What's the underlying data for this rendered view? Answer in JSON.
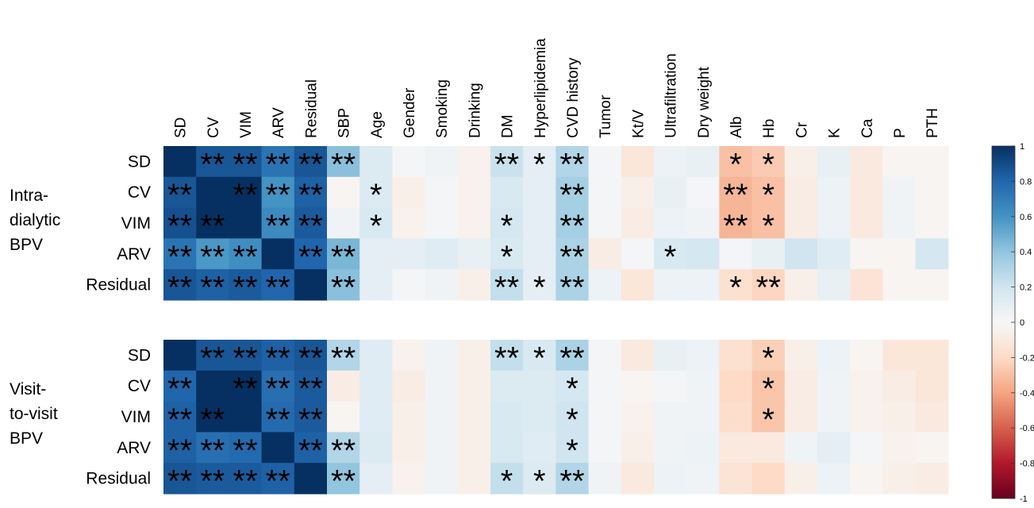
{
  "chart_data": {
    "type": "heatmap",
    "title": "",
    "columns": [
      "SD",
      "CV",
      "VIM",
      "ARV",
      "Residual",
      "SBP",
      "Age",
      "Gender",
      "Smoking",
      "Drinking",
      "DM",
      "Hyperlipidemia",
      "CVD history",
      "Tumor",
      "Kt/V",
      "Ultrafiltration",
      "Dry weight",
      "Alb",
      "Hb",
      "Cr",
      "K",
      "Ca",
      "P",
      "PTH"
    ],
    "colorbar": {
      "min": -1,
      "max": 1,
      "ticks": [
        "1",
        "0.8",
        "0.6",
        "0.4",
        "0.2",
        "0",
        "-0.2",
        "-0.4",
        "-0.6",
        "-0.8",
        "-1"
      ],
      "colors": [
        "#67001f",
        "#b2182b",
        "#d6604d",
        "#f4a582",
        "#fddbc7",
        "#f7f7f7",
        "#d1e5f0",
        "#92c5de",
        "#4393c3",
        "#2166ac",
        "#053061"
      ]
    },
    "groups": [
      {
        "label": "Intra-dialytic BPV",
        "label_lines": [
          "Intra-",
          "dialytic",
          "BPV"
        ],
        "rows": [
          {
            "name": "SD",
            "values": [
              1.0,
              0.86,
              0.86,
              0.74,
              0.86,
              0.42,
              0.14,
              0.02,
              0.04,
              -0.04,
              0.22,
              0.1,
              0.3,
              0.02,
              -0.12,
              0.06,
              0.08,
              -0.3,
              -0.26,
              -0.06,
              0.08,
              -0.1,
              -0.02,
              -0.02
            ],
            "stars": [
              "",
              "**",
              "**",
              "**",
              "**",
              "**",
              "",
              "",
              "",
              "",
              "**",
              "*",
              "**",
              "",
              "",
              "",
              "",
              "*",
              "*",
              "",
              "",
              "",
              "",
              ""
            ]
          },
          {
            "name": "CV",
            "values": [
              0.86,
              1.0,
              1.0,
              0.6,
              0.82,
              -0.02,
              0.14,
              -0.06,
              0.02,
              -0.04,
              0.16,
              0.1,
              0.34,
              0.02,
              -0.06,
              0.08,
              0.02,
              -0.34,
              -0.3,
              -0.08,
              0.06,
              -0.1,
              0.04,
              -0.02
            ],
            "stars": [
              "**",
              "",
              "**",
              "**",
              "**",
              "",
              "*",
              "",
              "",
              "",
              "",
              "",
              "**",
              "",
              "",
              "",
              "",
              "**",
              "*",
              "",
              "",
              "",
              "",
              ""
            ]
          },
          {
            "name": "VIM",
            "values": [
              0.88,
              1.0,
              1.0,
              0.64,
              0.84,
              0.04,
              0.16,
              -0.04,
              0.02,
              -0.04,
              0.18,
              0.1,
              0.34,
              0.02,
              -0.08,
              0.06,
              0.04,
              -0.34,
              -0.3,
              -0.08,
              0.06,
              -0.1,
              0.04,
              -0.02
            ],
            "stars": [
              "**",
              "**",
              "",
              "**",
              "**",
              "",
              "*",
              "",
              "",
              "",
              "*",
              "",
              "**",
              "",
              "",
              "",
              "",
              "**",
              "*",
              "",
              "",
              "",
              "",
              ""
            ]
          },
          {
            "name": "ARV",
            "values": [
              0.74,
              0.58,
              0.62,
              1.0,
              0.8,
              0.46,
              0.1,
              0.1,
              0.12,
              0.08,
              0.16,
              0.1,
              0.32,
              -0.08,
              0.02,
              0.16,
              0.18,
              0.02,
              0.08,
              0.2,
              0.12,
              -0.02,
              -0.02,
              0.18
            ],
            "stars": [
              "**",
              "**",
              "**",
              "",
              "**",
              "**",
              "",
              "",
              "",
              "",
              "*",
              "",
              "**",
              "",
              "",
              "*",
              "",
              "",
              "",
              "",
              "",
              "",
              "",
              ""
            ]
          },
          {
            "name": "Residual",
            "values": [
              0.86,
              0.82,
              0.84,
              0.8,
              1.0,
              0.42,
              0.1,
              0.02,
              0.04,
              -0.06,
              0.24,
              0.1,
              0.32,
              0.06,
              -0.12,
              0.06,
              0.06,
              -0.16,
              -0.22,
              -0.06,
              0.08,
              -0.14,
              -0.02,
              -0.02
            ],
            "stars": [
              "**",
              "**",
              "**",
              "**",
              "",
              "**",
              "",
              "",
              "",
              "",
              "**",
              "*",
              "**",
              "",
              "",
              "",
              "",
              "*",
              "**",
              "",
              "",
              "",
              "",
              ""
            ]
          }
        ]
      },
      {
        "label": "Visit-to-visit BPV",
        "label_lines": [
          "Visit-",
          "to-visit",
          "BPV"
        ],
        "rows": [
          {
            "name": "SD",
            "values": [
              1.0,
              0.86,
              0.86,
              0.82,
              0.86,
              0.3,
              0.12,
              -0.04,
              0.04,
              -0.06,
              0.24,
              0.16,
              0.32,
              0.02,
              -0.1,
              0.08,
              0.06,
              -0.16,
              -0.24,
              -0.06,
              0.06,
              -0.02,
              -0.12,
              -0.12
            ],
            "stars": [
              "",
              "**",
              "**",
              "**",
              "**",
              "**",
              "",
              "",
              "",
              "",
              "**",
              "*",
              "**",
              "",
              "",
              "",
              "",
              "",
              "*",
              "",
              "",
              "",
              "",
              ""
            ]
          },
          {
            "name": "CV",
            "values": [
              0.8,
              1.0,
              1.0,
              0.76,
              0.84,
              -0.08,
              0.12,
              -0.08,
              0.04,
              -0.06,
              0.14,
              0.14,
              0.18,
              0.02,
              -0.02,
              0.02,
              0.04,
              -0.2,
              -0.28,
              -0.08,
              0.04,
              -0.04,
              -0.08,
              -0.12
            ],
            "stars": [
              "**",
              "",
              "**",
              "**",
              "**",
              "",
              "",
              "",
              "",
              "",
              "",
              "",
              "*",
              "",
              "",
              "",
              "",
              "",
              "*",
              "",
              "",
              "",
              "",
              ""
            ]
          },
          {
            "name": "VIM",
            "values": [
              0.82,
              1.0,
              1.0,
              0.78,
              0.84,
              -0.02,
              0.12,
              -0.06,
              0.04,
              -0.06,
              0.16,
              0.14,
              0.2,
              0.02,
              -0.04,
              0.04,
              0.04,
              -0.18,
              -0.28,
              -0.08,
              0.04,
              -0.04,
              -0.06,
              -0.1
            ],
            "stars": [
              "**",
              "**",
              "",
              "**",
              "**",
              "",
              "",
              "",
              "",
              "",
              "",
              "",
              "*",
              "",
              "",
              "",
              "",
              "",
              "*",
              "",
              "",
              "",
              "",
              ""
            ]
          },
          {
            "name": "ARV",
            "values": [
              0.82,
              0.76,
              0.78,
              1.0,
              0.82,
              0.3,
              0.14,
              -0.06,
              0.04,
              -0.06,
              0.16,
              0.12,
              0.2,
              0.02,
              -0.06,
              0.04,
              0.06,
              -0.1,
              -0.1,
              0.04,
              0.1,
              0.02,
              -0.04,
              -0.02
            ],
            "stars": [
              "**",
              "**",
              "**",
              "",
              "**",
              "**",
              "",
              "",
              "",
              "",
              "",
              "",
              "*",
              "",
              "",
              "",
              "",
              "",
              "",
              "",
              "",
              "",
              "",
              ""
            ]
          },
          {
            "name": "Residual",
            "values": [
              0.86,
              0.84,
              0.84,
              0.82,
              1.0,
              0.4,
              0.1,
              -0.04,
              0.04,
              -0.06,
              0.24,
              0.14,
              0.3,
              0.04,
              -0.1,
              0.06,
              0.04,
              -0.14,
              -0.2,
              -0.06,
              0.06,
              -0.02,
              -0.06,
              -0.08
            ],
            "stars": [
              "**",
              "**",
              "**",
              "**",
              "",
              "**",
              "",
              "",
              "",
              "",
              "*",
              "*",
              "**",
              "",
              "",
              "",
              "",
              "",
              "",
              "",
              "",
              "",
              "",
              ""
            ]
          }
        ]
      }
    ]
  }
}
